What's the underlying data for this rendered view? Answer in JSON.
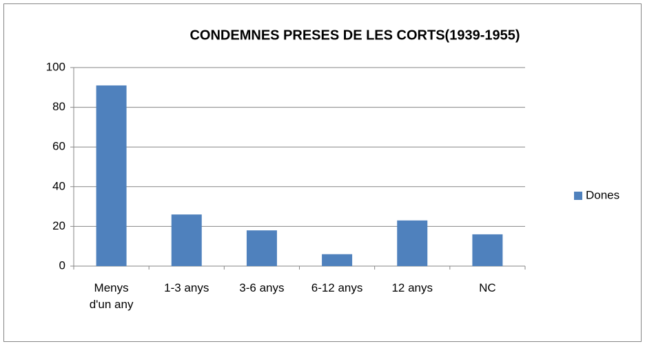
{
  "chart_data": {
    "type": "bar",
    "title": "CONDEMNES PRESES DE LES CORTS(1939-1955)",
    "categories": [
      "Menys d'un any",
      "1-3 anys",
      "3-6 anys",
      "6-12 anys",
      "12 anys",
      "NC"
    ],
    "series": [
      {
        "name": "Dones",
        "color": "#4f81bd",
        "values": [
          91,
          26,
          18,
          6,
          23,
          16
        ]
      }
    ],
    "ylim": [
      0,
      100
    ],
    "yticks": [
      0,
      20,
      40,
      60,
      80,
      100
    ],
    "grid": true,
    "legend": "right"
  }
}
